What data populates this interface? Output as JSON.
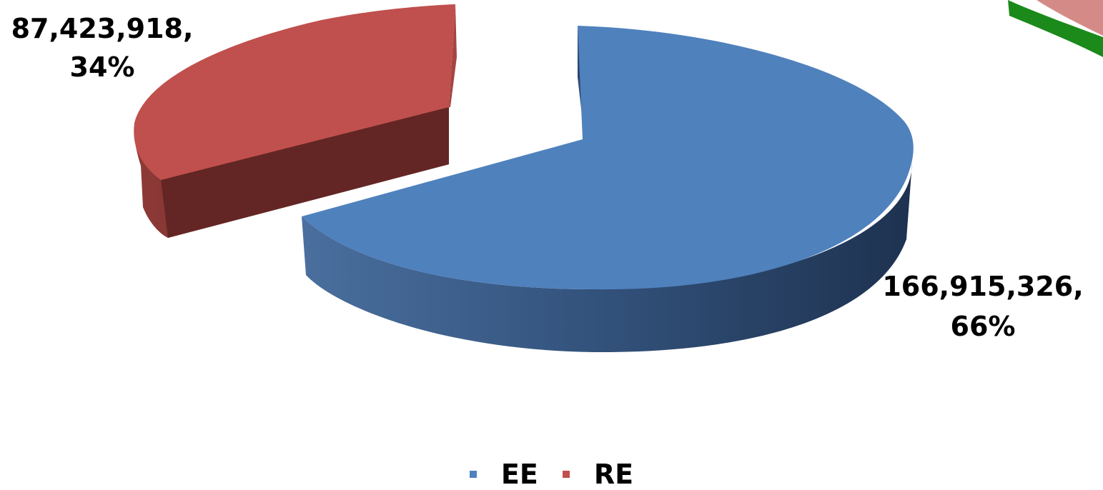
{
  "chart_data": {
    "type": "pie",
    "title": "",
    "style": "3d-exploded",
    "legend_position": "bottom",
    "series": [
      {
        "name": "",
        "categories": [
          "EE",
          "RE"
        ],
        "values": [
          166915326,
          87423918
        ],
        "percent_labels": [
          "66%",
          "34%"
        ],
        "value_labels": [
          "166,915,326,",
          "87,423,918,"
        ],
        "colors": [
          "#4F81BD",
          "#C0504D"
        ]
      }
    ]
  },
  "legend": {
    "items": [
      {
        "label": "EE",
        "color": "#4F81BD"
      },
      {
        "label": "RE",
        "color": "#C0504D"
      }
    ]
  }
}
